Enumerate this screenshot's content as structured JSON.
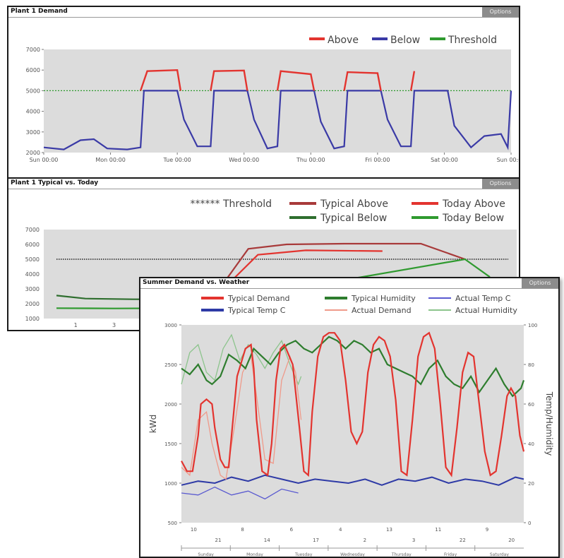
{
  "panels": {
    "demand": {
      "title": "Plant 1 Demand",
      "options": "Options"
    },
    "typical": {
      "title": "Plant 1 Typical vs. Today",
      "options": "Options"
    },
    "weather": {
      "title": "Summer Demand vs. Weather",
      "options": "Options"
    }
  },
  "chart_data": [
    {
      "type": "line",
      "title": "Plant 1 Demand",
      "ylim": [
        2000,
        7000
      ],
      "yticks": [
        "2000",
        "3000",
        "4000",
        "5000",
        "6000",
        "7000"
      ],
      "xticks": [
        "Sun 00:00",
        "Mon 00:00",
        "Tue 00:00",
        "Wed 00:00",
        "Thu 00:00",
        "Fri 00:00",
        "Sat 00:00",
        "Sun 00:00"
      ],
      "legend": [
        "Above",
        "Below",
        "Threshold"
      ],
      "legend_position": "top-right",
      "grid": false,
      "colors": {
        "above": "#e3342f",
        "below": "#3a3aa6",
        "threshold": "#2f9a2f",
        "plot_bg": "#dcdcdc"
      },
      "threshold": 5000,
      "series": [
        {
          "name": "Above",
          "x_days": [
            1.45,
            1.55,
            2.0,
            2.05,
            2.5,
            2.55,
            3.0,
            3.05,
            3.5,
            3.55,
            4.0,
            4.05,
            4.5,
            4.55,
            5.0,
            5.05,
            5.5,
            5.55
          ],
          "values": [
            5000,
            5950,
            6000,
            5000,
            5000,
            5950,
            5980,
            5000,
            5000,
            5950,
            5800,
            5000,
            5000,
            5900,
            5850,
            5000,
            5000,
            5950
          ]
        },
        {
          "name": "Below",
          "x_days": [
            0,
            0.3,
            0.55,
            0.75,
            0.95,
            1.25,
            1.45,
            1.5,
            2.0,
            2.1,
            2.3,
            2.5,
            2.55,
            3.05,
            3.15,
            3.35,
            3.5,
            3.55,
            4.05,
            4.15,
            4.35,
            4.5,
            4.55,
            5.05,
            5.15,
            5.35,
            5.5,
            5.55,
            6.05,
            6.15,
            6.4,
            6.6,
            6.85,
            6.95,
            7.0
          ],
          "values": [
            2250,
            2150,
            2600,
            2650,
            2200,
            2150,
            2250,
            5000,
            5000,
            3600,
            2300,
            2300,
            5000,
            5000,
            3600,
            2200,
            2300,
            5000,
            5000,
            3500,
            2200,
            2300,
            5000,
            5000,
            3600,
            2300,
            2300,
            5000,
            5000,
            3300,
            2250,
            2800,
            2900,
            2250,
            5000
          ]
        },
        {
          "name": "Threshold",
          "x_days": [
            0,
            7
          ],
          "values": [
            5000,
            5000
          ]
        }
      ]
    },
    {
      "type": "line",
      "title": "Plant 1 Typical vs. Today",
      "ylim": [
        1000,
        7000
      ],
      "yticks": [
        "1000",
        "2000",
        "3000",
        "4000",
        "5000",
        "6000",
        "7000"
      ],
      "xticks": [
        "1",
        "3"
      ],
      "legend": [
        "****** Threshold",
        "Typical Above",
        "Today Above",
        "Typical Below",
        "Today Below"
      ],
      "legend_position": "top-right",
      "grid": false,
      "colors": {
        "typical_above": "#a83a3a",
        "today_above": "#e3342f",
        "typical_below": "#2e6e2e",
        "today_below": "#2f9a2f",
        "threshold": "#222222",
        "plot_bg": "#dcdcdc"
      },
      "threshold": 5000,
      "series": [
        {
          "name": "Typical Above",
          "x": [
            8.5,
            10,
            12,
            15,
            19,
            21.3
          ],
          "values": [
            3000,
            5700,
            6000,
            6050,
            6050,
            5000
          ]
        },
        {
          "name": "Today Above",
          "x": [
            8.7,
            10.5,
            13,
            17
          ],
          "values": [
            3000,
            5300,
            5600,
            5550
          ]
        },
        {
          "name": "Typical Below",
          "x": [
            0,
            1.5,
            4,
            6.5
          ],
          "values": [
            2550,
            2350,
            2300,
            2300
          ]
        },
        {
          "name": "Today Below",
          "x": [
            0,
            3,
            6.5,
            21.3,
            22.6
          ],
          "values": [
            1700,
            1680,
            1700,
            5000,
            3800
          ]
        }
      ]
    },
    {
      "type": "line",
      "title": "Summer Demand vs. Weather",
      "ylabel": "kWd",
      "y2label": "Temp/Humidity",
      "ylim": [
        500,
        3000
      ],
      "y2lim": [
        0,
        100
      ],
      "yticks": [
        "500",
        "1000",
        "1500",
        "2000",
        "2500",
        "3000"
      ],
      "y2ticks": [
        "0",
        "20",
        "40",
        "60",
        "80",
        "100"
      ],
      "xticks": [
        "10",
        "21",
        "8",
        "14",
        "6",
        "17",
        "4",
        "2",
        "13",
        "3",
        "11",
        "22",
        "9",
        "20"
      ],
      "days": [
        "Sunday",
        "Monday",
        "Tuesday",
        "Wednesday",
        "Thursday",
        "Friday",
        "Saturday"
      ],
      "legend": [
        "Typical Demand",
        "Typical Humidity",
        "Actual Temp C",
        "Typical Temp C",
        "Actual Demand",
        "Actual Humidity"
      ],
      "legend_position": "top",
      "grid": false,
      "colors": {
        "typical_demand": "#e3342f",
        "typical_humidity": "#2e7d2e",
        "actual_temp": "#5a5ad0",
        "typical_temp": "#2e3aa6",
        "actual_demand": "#ef9a8a",
        "actual_humidity": "#8cc48c",
        "plot_bg": "#dcdcdc"
      },
      "series": [
        {
          "name": "Typical Demand",
          "axis": "left",
          "x": [
            0,
            0.1,
            0.2,
            0.3,
            0.35,
            0.45,
            0.55,
            0.6,
            0.7,
            0.78,
            0.85,
            0.9,
            1.0,
            1.15,
            1.25,
            1.3,
            1.35,
            1.45,
            1.55,
            1.62,
            1.7,
            1.78,
            1.85,
            2.0,
            2.12,
            2.2,
            2.28,
            2.35,
            2.45,
            2.55,
            2.65,
            2.75,
            2.85,
            2.95,
            3.05,
            3.15,
            3.25,
            3.35,
            3.45,
            3.55,
            3.65,
            3.75,
            3.85,
            3.95,
            4.05,
            4.15,
            4.25,
            4.35,
            4.45,
            4.55,
            4.65,
            4.75,
            4.85,
            4.95,
            5.05,
            5.15,
            5.25,
            5.35,
            5.45,
            5.55,
            5.65,
            5.75,
            5.85,
            5.92,
            6.0,
            6.08,
            6.15
          ],
          "values": [
            1280,
            1150,
            1150,
            1600,
            2000,
            2060,
            2000,
            1700,
            1300,
            1200,
            1200,
            1600,
            2350,
            2700,
            2750,
            2450,
            1800,
            1150,
            1100,
            1500,
            2300,
            2700,
            2750,
            2500,
            1700,
            1150,
            1100,
            1900,
            2600,
            2850,
            2900,
            2900,
            2800,
            2300,
            1650,
            1500,
            1650,
            2400,
            2750,
            2850,
            2800,
            2600,
            2050,
            1150,
            1100,
            1800,
            2600,
            2850,
            2900,
            2700,
            2000,
            1200,
            1100,
            1700,
            2400,
            2650,
            2600,
            2000,
            1400,
            1100,
            1150,
            1600,
            2100,
            2200,
            2100,
            1600,
            1400
          ]
        },
        {
          "name": "Typical Humidity",
          "axis": "right",
          "x": [
            0,
            0.15,
            0.3,
            0.45,
            0.55,
            0.7,
            0.85,
            1.0,
            1.15,
            1.3,
            1.45,
            1.6,
            1.75,
            1.9,
            2.05,
            2.2,
            2.35,
            2.5,
            2.65,
            2.8,
            2.95,
            3.1,
            3.25,
            3.4,
            3.55,
            3.7,
            3.85,
            4.0,
            4.15,
            4.3,
            4.45,
            4.6,
            4.75,
            4.9,
            5.05,
            5.2,
            5.35,
            5.5,
            5.65,
            5.8,
            5.95,
            6.1,
            6.15
          ],
          "values": [
            78,
            75,
            80,
            72,
            70,
            74,
            85,
            82,
            78,
            88,
            84,
            80,
            86,
            90,
            92,
            88,
            86,
            90,
            94,
            92,
            88,
            92,
            90,
            86,
            88,
            80,
            78,
            76,
            74,
            70,
            78,
            82,
            74,
            70,
            68,
            74,
            66,
            72,
            78,
            70,
            64,
            68,
            72
          ]
        },
        {
          "name": "Typical Temp C",
          "axis": "right",
          "x": [
            0,
            0.3,
            0.6,
            0.9,
            1.2,
            1.5,
            1.8,
            2.1,
            2.4,
            2.7,
            3.0,
            3.3,
            3.6,
            3.9,
            4.2,
            4.5,
            4.8,
            5.1,
            5.4,
            5.7,
            6.0,
            6.15
          ],
          "values": [
            19,
            21,
            20,
            23,
            21,
            24,
            22,
            20,
            22,
            21,
            20,
            22,
            19,
            22,
            21,
            23,
            20,
            22,
            21,
            19,
            23,
            22
          ]
        },
        {
          "name": "Actual Demand",
          "axis": "left",
          "x": [
            0,
            0.15,
            0.3,
            0.45,
            0.55,
            0.7,
            0.8,
            0.95,
            1.1,
            1.25,
            1.35,
            1.5,
            1.65,
            1.8,
            1.95,
            2.05,
            2.15
          ],
          "values": [
            1200,
            1100,
            1800,
            1900,
            1500,
            1100,
            1050,
            1700,
            2400,
            2600,
            2100,
            1300,
            1250,
            2300,
            2600,
            2400,
            1800
          ]
        },
        {
          "name": "Actual Humidity",
          "axis": "right",
          "x": [
            0,
            0.15,
            0.3,
            0.45,
            0.6,
            0.75,
            0.9,
            1.05,
            1.2,
            1.35,
            1.5,
            1.65,
            1.8,
            1.95,
            2.1,
            2.15
          ],
          "values": [
            70,
            86,
            90,
            76,
            72,
            88,
            95,
            82,
            90,
            85,
            78,
            86,
            92,
            80,
            70,
            74
          ]
        },
        {
          "name": "Actual Temp C",
          "axis": "right",
          "x": [
            0,
            0.3,
            0.6,
            0.9,
            1.2,
            1.5,
            1.8,
            2.1
          ],
          "values": [
            15,
            14,
            18,
            14,
            16,
            12,
            17,
            15
          ]
        }
      ]
    }
  ]
}
